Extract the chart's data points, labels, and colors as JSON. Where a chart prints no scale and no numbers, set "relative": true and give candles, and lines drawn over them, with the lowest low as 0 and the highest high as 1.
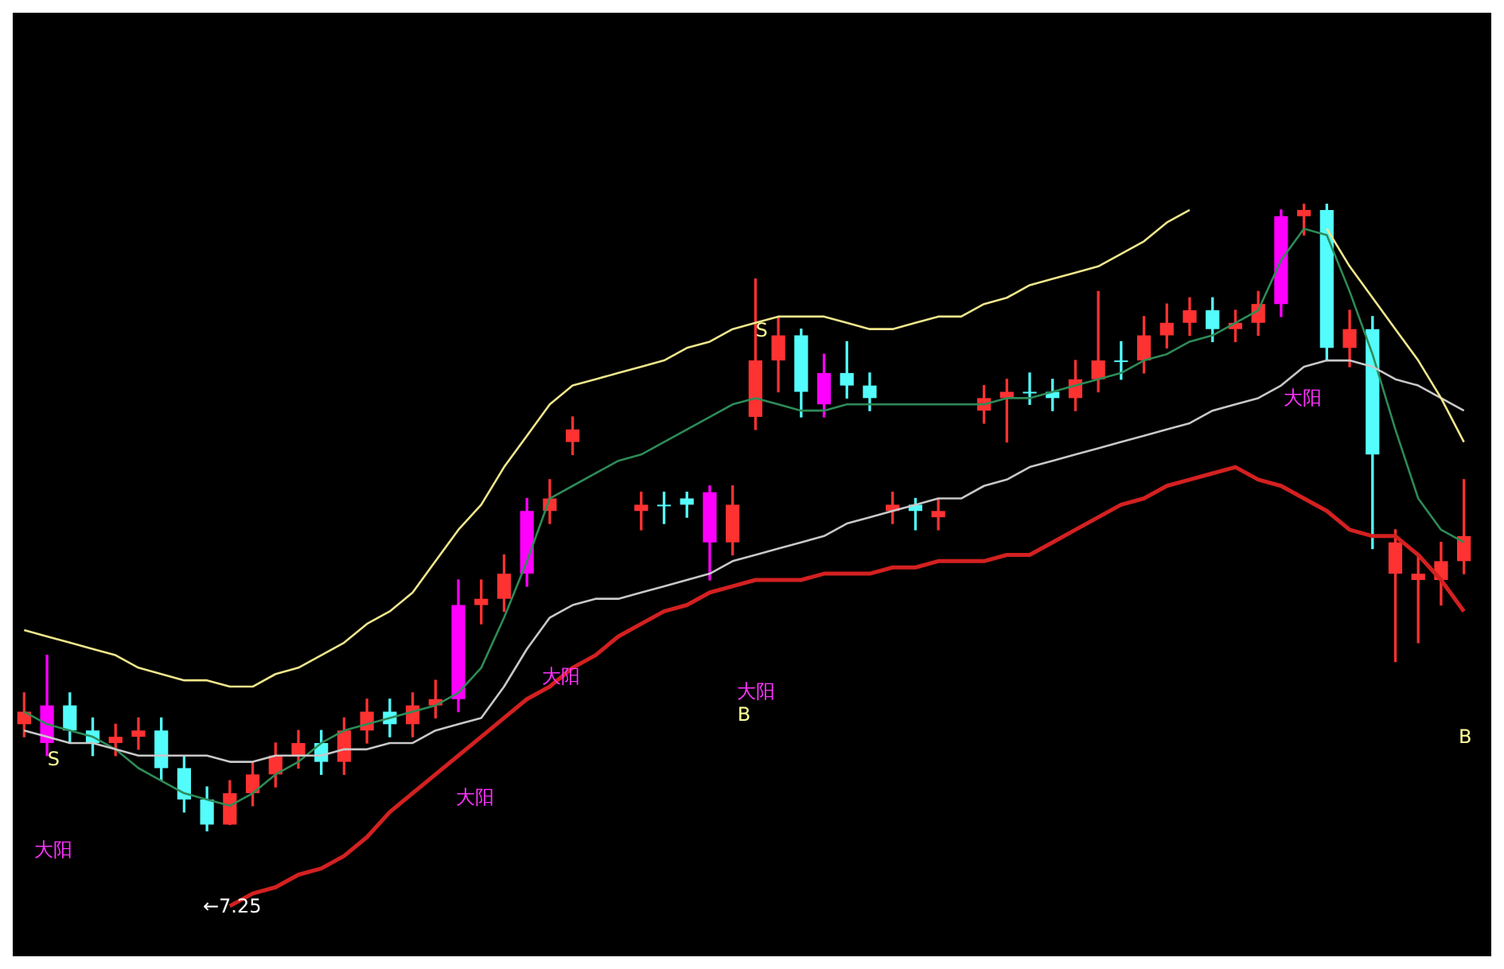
{
  "chart_data": {
    "type": "candlestick",
    "relative": true,
    "legend": false,
    "tick_labels": false,
    "categories": [
      null,
      null,
      null,
      null,
      null,
      null,
      null,
      null,
      null,
      null,
      null,
      null,
      null,
      null,
      null,
      null,
      null,
      null,
      null,
      null,
      null,
      null,
      null,
      null,
      null,
      null,
      null,
      null,
      null,
      null,
      null,
      null,
      null,
      null,
      null,
      null,
      null,
      null,
      null,
      null,
      null,
      null,
      null,
      null,
      null,
      null,
      null,
      null,
      null,
      null,
      null,
      null,
      null,
      null,
      null,
      null,
      null,
      null,
      null,
      null,
      null,
      null,
      null,
      null
    ],
    "ohlc": [
      [
        0.17,
        0.22,
        0.15,
        0.19
      ],
      [
        0.14,
        0.28,
        0.12,
        0.2
      ],
      [
        0.2,
        0.22,
        0.14,
        0.16
      ],
      [
        0.16,
        0.18,
        0.12,
        0.14
      ],
      [
        0.14,
        0.17,
        0.12,
        0.15
      ],
      [
        0.15,
        0.18,
        0.13,
        0.16
      ],
      [
        0.16,
        0.18,
        0.08,
        0.1
      ],
      [
        0.1,
        0.12,
        0.03,
        0.05
      ],
      [
        0.05,
        0.07,
        0,
        0.01
      ],
      [
        0.01,
        0.08,
        0.01,
        0.06
      ],
      [
        0.06,
        0.11,
        0.04,
        0.09
      ],
      [
        0.09,
        0.14,
        0.07,
        0.12
      ],
      [
        0.12,
        0.16,
        0.1,
        0.14
      ],
      [
        0.14,
        0.16,
        0.09,
        0.11
      ],
      [
        0.11,
        0.18,
        0.09,
        0.16
      ],
      [
        0.16,
        0.21,
        0.14,
        0.19
      ],
      [
        0.19,
        0.21,
        0.15,
        0.17
      ],
      [
        0.17,
        0.22,
        0.15,
        0.2
      ],
      [
        0.2,
        0.24,
        0.18,
        0.21
      ],
      [
        0.21,
        0.4,
        0.19,
        0.36
      ],
      [
        0.36,
        0.4,
        0.33,
        0.37
      ],
      [
        0.37,
        0.44,
        0.35,
        0.41
      ],
      [
        0.41,
        0.53,
        0.39,
        0.51
      ],
      [
        0.51,
        0.56,
        0.49,
        0.53
      ],
      [
        0.62,
        0.66,
        0.6,
        0.64
      ],
      null,
      null,
      [
        0.51,
        0.54,
        0.48,
        0.52
      ],
      [
        0.52,
        0.54,
        0.49,
        0.52
      ],
      [
        0.53,
        0.54,
        0.5,
        0.52
      ],
      [
        0.54,
        0.55,
        0.4,
        0.46
      ],
      [
        0.46,
        0.55,
        0.44,
        0.52
      ],
      [
        0.66,
        0.88,
        0.64,
        0.75
      ],
      [
        0.75,
        0.82,
        0.7,
        0.79
      ],
      [
        0.79,
        0.8,
        0.66,
        0.7
      ],
      [
        0.68,
        0.76,
        0.66,
        0.73
      ],
      [
        0.73,
        0.78,
        0.69,
        0.71
      ],
      [
        0.71,
        0.73,
        0.67,
        0.69
      ],
      [
        0.51,
        0.54,
        0.49,
        0.52
      ],
      [
        0.52,
        0.53,
        0.48,
        0.51
      ],
      [
        0.5,
        0.53,
        0.48,
        0.51
      ],
      null,
      [
        0.67,
        0.71,
        0.65,
        0.69
      ],
      [
        0.69,
        0.72,
        0.62,
        0.7
      ],
      [
        0.7,
        0.73,
        0.68,
        0.7
      ],
      [
        0.7,
        0.72,
        0.67,
        0.69
      ],
      [
        0.69,
        0.75,
        0.67,
        0.72
      ],
      [
        0.72,
        0.86,
        0.7,
        0.75
      ],
      [
        0.75,
        0.78,
        0.72,
        0.75
      ],
      [
        0.75,
        0.82,
        0.73,
        0.79
      ],
      [
        0.79,
        0.84,
        0.77,
        0.81
      ],
      [
        0.81,
        0.85,
        0.79,
        0.83
      ],
      [
        0.83,
        0.85,
        0.78,
        0.8
      ],
      [
        0.8,
        0.83,
        0.78,
        0.81
      ],
      [
        0.81,
        0.86,
        0.79,
        0.84
      ],
      [
        0.84,
        0.99,
        0.82,
        0.98
      ],
      [
        0.98,
        1,
        0.95,
        0.99
      ],
      [
        0.99,
        1,
        0.75,
        0.77
      ],
      [
        0.77,
        0.83,
        0.74,
        0.8
      ],
      [
        0.8,
        0.82,
        0.45,
        0.6
      ],
      [
        0.41,
        0.48,
        0.27,
        0.46
      ],
      [
        0.4,
        0.44,
        0.3,
        0.41
      ],
      [
        0.4,
        0.46,
        0.36,
        0.43
      ],
      [
        0.43,
        0.56,
        0.41,
        0.47
      ]
    ],
    "colors": [
      "#ff3232",
      "#ff00ff",
      "#54fcfc",
      "#54fcfc",
      "#ff3232",
      "#ff3232",
      "#54fcfc",
      "#54fcfc",
      "#54fcfc",
      "#ff3232",
      "#ff3232",
      "#ff3232",
      "#ff3232",
      "#54fcfc",
      "#ff3232",
      "#ff3232",
      "#54fcfc",
      "#ff3232",
      "#ff3232",
      "#ff00ff",
      "#ff3232",
      "#ff3232",
      "#ff00ff",
      "#ff3232",
      "#ff3232",
      null,
      null,
      "#ff3232",
      "#54fcfc",
      "#54fcfc",
      "#ff00ff",
      "#ff3232",
      "#ff3232",
      "#ff3232",
      "#54fcfc",
      "#ff00ff",
      "#54fcfc",
      "#54fcfc",
      "#ff3232",
      "#54fcfc",
      "#ff3232",
      null,
      "#ff3232",
      "#ff3232",
      "#54fcfc",
      "#54fcfc",
      "#ff3232",
      "#ff3232",
      "#54fcfc",
      "#ff3232",
      "#ff3232",
      "#ff3232",
      "#54fcfc",
      "#ff3232",
      "#ff3232",
      "#ff00ff",
      "#ff3232",
      "#54fcfc",
      "#ff3232",
      "#54fcfc",
      "#ff3232",
      "#ff3232",
      "#ff3232",
      "#ff3232"
    ],
    "series": [
      {
        "type": "line",
        "color": "#f0e68c",
        "values": [
          0.32,
          0.31,
          0.3,
          0.29,
          0.28,
          0.26,
          0.25,
          0.24,
          0.24,
          0.23,
          0.23,
          0.25,
          0.26,
          0.28,
          0.3,
          0.33,
          0.35,
          0.38,
          0.43,
          0.48,
          0.52,
          0.58,
          0.63,
          0.68,
          0.71,
          0.72,
          0.73,
          0.74,
          0.75,
          0.77,
          0.78,
          0.8,
          0.81,
          0.82,
          0.82,
          0.82,
          0.81,
          0.8,
          0.8,
          0.81,
          0.82,
          0.82,
          0.84,
          0.85,
          0.87,
          0.88,
          0.89,
          0.9,
          0.92,
          0.94,
          0.97,
          0.99,
          null,
          null,
          null,
          null,
          null,
          0.96,
          0.9,
          0.85,
          0.8,
          0.75,
          0.69,
          0.62
        ]
      },
      {
        "type": "line",
        "color": "#c8c8c8",
        "values": [
          0.16,
          0.15,
          0.14,
          0.14,
          0.13,
          0.12,
          0.12,
          0.12,
          0.12,
          0.11,
          0.11,
          0.12,
          0.12,
          0.12,
          0.13,
          0.13,
          0.14,
          0.14,
          0.16,
          0.17,
          0.18,
          0.23,
          0.29,
          0.34,
          0.36,
          0.37,
          0.37,
          0.38,
          0.39,
          0.4,
          0.41,
          0.43,
          0.44,
          0.45,
          0.46,
          0.47,
          0.49,
          0.5,
          0.51,
          0.52,
          0.53,
          0.53,
          0.55,
          0.56,
          0.58,
          0.59,
          0.6,
          0.61,
          0.62,
          0.63,
          0.64,
          0.65,
          0.67,
          0.68,
          0.69,
          0.71,
          0.74,
          0.75,
          0.75,
          0.74,
          0.72,
          0.71,
          0.69,
          0.67
        ]
      },
      {
        "type": "line",
        "color": "#2e8b57",
        "values": [
          0.19,
          0.17,
          0.16,
          0.15,
          0.13,
          0.1,
          0.08,
          0.06,
          0.05,
          0.04,
          0.06,
          0.09,
          0.11,
          0.14,
          0.16,
          0.17,
          0.18,
          0.19,
          0.2,
          0.22,
          0.26,
          0.34,
          0.43,
          0.53,
          0.55,
          0.57,
          0.59,
          0.6,
          0.62,
          0.64,
          0.66,
          0.68,
          0.69,
          0.68,
          0.67,
          0.67,
          0.68,
          0.68,
          0.68,
          0.68,
          0.68,
          0.68,
          0.68,
          0.69,
          0.69,
          0.7,
          0.71,
          0.72,
          0.73,
          0.75,
          0.76,
          0.78,
          0.79,
          0.81,
          0.83,
          0.91,
          0.96,
          0.95,
          0.86,
          0.76,
          0.64,
          0.53,
          0.48,
          0.46
        ]
      },
      {
        "type": "line",
        "color": "#d42020",
        "values": [
          null,
          null,
          null,
          null,
          null,
          null,
          null,
          null,
          null,
          -0.12,
          -0.1,
          -0.09,
          -0.07,
          -0.06,
          -0.04,
          -0.01,
          0.03,
          0.06,
          0.09,
          0.12,
          0.15,
          0.18,
          0.21,
          0.23,
          0.26,
          0.28,
          0.31,
          0.33,
          0.35,
          0.36,
          0.38,
          0.39,
          0.4,
          0.4,
          0.4,
          0.41,
          0.41,
          0.41,
          0.42,
          0.42,
          0.43,
          0.43,
          0.43,
          0.44,
          0.44,
          0.46,
          0.48,
          0.5,
          0.52,
          0.53,
          0.55,
          0.56,
          0.57,
          0.58,
          0.56,
          0.55,
          0.53,
          0.51,
          0.48,
          0.47,
          0.47,
          0.44,
          0.4,
          0.35
        ]
      }
    ],
    "annotations": [
      "S",
      "S",
      "B",
      "B",
      "大阳",
      "大阳",
      "大阳",
      "大阳",
      "大阳",
      "←7.25"
    ]
  }
}
